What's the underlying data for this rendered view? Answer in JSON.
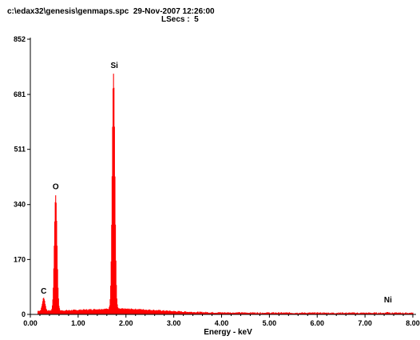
{
  "header": {
    "file_line": "c:\\edax32\\genesis\\genmaps.spc  29-Nov-2007 12:26:00",
    "lsecs_line": "LSecs :  5"
  },
  "chart_data": {
    "type": "bar",
    "title": "",
    "xlabel": "Energy - keV",
    "ylabel": "",
    "xlim": [
      0,
      8.0
    ],
    "ylim": [
      0,
      852
    ],
    "x_ticks": [
      0.0,
      1.0,
      2.0,
      3.0,
      4.0,
      5.0,
      6.0,
      7.0,
      8.0
    ],
    "x_tick_labels": [
      "0.00",
      "1.00",
      "2.00",
      "3.00",
      "4.00",
      "5.00",
      "6.00",
      "7.00",
      "8.00"
    ],
    "y_ticks": [
      0,
      170,
      340,
      511,
      681,
      852
    ],
    "y_tick_labels": [
      "0",
      "170",
      "340",
      "511",
      "681",
      "852"
    ],
    "grid": false,
    "series_color": "#ff0000",
    "peaks": [
      {
        "label": "C",
        "energy": 0.28,
        "counts": 40
      },
      {
        "label": "O",
        "energy": 0.53,
        "counts": 358
      },
      {
        "label": "Si",
        "energy": 1.74,
        "counts": 728
      },
      {
        "label": "Ni",
        "energy": 7.48,
        "counts": 3
      }
    ]
  }
}
